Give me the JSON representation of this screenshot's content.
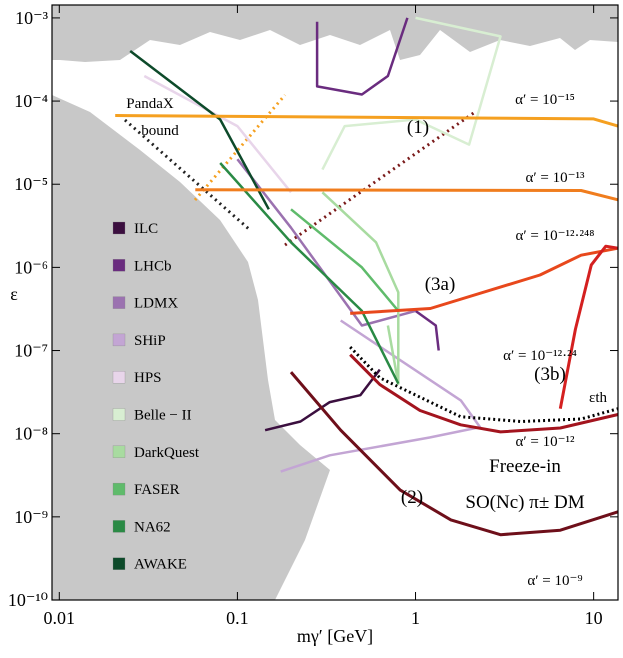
{
  "chart_data": {
    "type": "line",
    "xlabel": "mγ′ [GeV]",
    "ylabel": "ε",
    "log_x": true,
    "log_y": true,
    "xlim": [
      0.0091,
      13.7
    ],
    "ylim": [
      1e-10,
      0.00143
    ],
    "xticks": [
      0.01,
      0.1,
      1,
      10
    ],
    "yticks": [
      {
        "value": 0.001,
        "label": "10⁻³"
      },
      {
        "value": 0.0001,
        "label": "10⁻⁴"
      },
      {
        "value": 1e-05,
        "label": "10⁻⁵"
      },
      {
        "value": 1e-06,
        "label": "10⁻⁶"
      },
      {
        "value": 1e-07,
        "label": "10⁻⁷"
      },
      {
        "value": 1e-08,
        "label": "10⁻⁸"
      },
      {
        "value": 1e-09,
        "label": "10⁻⁹"
      },
      {
        "value": 1e-10,
        "label": "10⁻¹⁰"
      }
    ],
    "legend": "left",
    "series": [
      {
        "name": "ILC",
        "color": "#3b0f3f",
        "x": [
          0.143,
          0.226,
          0.33,
          0.49,
          0.63
        ],
        "values": [
          1.1e-08,
          1.4e-08,
          2.4e-08,
          2.9e-08,
          5.9e-08
        ]
      },
      {
        "name": "LHCb",
        "color": "#6a2c7f",
        "x": [
          0.28,
          0.28,
          0.5,
          0.7,
          0.9,
          null,
          1.0,
          1.3,
          1.35
        ],
        "values": [
          0.0009,
          0.00015,
          0.00012,
          0.0002,
          0.001,
          null,
          3e-07,
          2e-07,
          1e-07
        ]
      },
      {
        "name": "LDMX",
        "color": "#9b72b0",
        "x": [
          0.1,
          0.2,
          0.5,
          1
        ],
        "values": [
          2e-05,
          3e-06,
          2e-07,
          3e-07
        ]
      },
      {
        "name": "SHiP",
        "color": "#c3a5d4",
        "x": [
          0.38,
          1.8,
          2.3,
          1.2,
          0.33,
          0.175
        ],
        "values": [
          2.3e-07,
          2.5e-08,
          1.2e-08,
          9e-09,
          5.5e-09,
          3.5e-09
        ]
      },
      {
        "name": "HPS",
        "color": "#e8d5ea",
        "x": [
          0.03,
          0.1,
          0.2
        ],
        "values": [
          0.0002,
          5e-05,
          8e-06
        ]
      },
      {
        "name": "Belle − II",
        "color": "#d8eed2",
        "x": [
          0.3,
          0.4,
          1,
          2,
          3,
          1
        ],
        "values": [
          1.5e-05,
          5e-05,
          6e-05,
          3e-05,
          0.0006,
          0.001
        ]
      },
      {
        "name": "DarkQuest",
        "color": "#a8dba0",
        "x": [
          0.3,
          0.6,
          0.8,
          0.8,
          0.7
        ],
        "values": [
          8e-06,
          2e-06,
          5e-07,
          4e-08,
          2e-07
        ]
      },
      {
        "name": "FASER",
        "color": "#5fbb6b",
        "x": [
          0.2,
          0.5,
          0.8
        ],
        "values": [
          5e-06,
          1e-06,
          3e-07
        ]
      },
      {
        "name": "NA62",
        "color": "#2a8a45",
        "x": [
          0.08,
          0.2,
          0.5,
          0.8
        ],
        "values": [
          1.8e-05,
          2e-06,
          3e-07,
          4e-08
        ]
      },
      {
        "name": "AWAKE",
        "color": "#0d4a2a",
        "x": [
          0.025,
          0.08,
          0.15
        ],
        "values": [
          0.0004,
          6e-05,
          5e-06
        ]
      }
    ],
    "curves": [
      {
        "label": "α′ = 10⁻¹⁵",
        "color": "#f5a020",
        "x": [
          0.0206,
          10,
          13.7
        ],
        "values": [
          6.7e-05,
          6.1e-05,
          5e-05
        ]
      },
      {
        "label": "α′ = 10⁻¹³",
        "color": "#f07d1e",
        "x": [
          0.058,
          8.5,
          13.7
        ],
        "values": [
          8.6e-06,
          8.4e-06,
          6.5e-06
        ]
      },
      {
        "label": "α′ = 10⁻¹²·²⁴⁸",
        "color": "#e8481c",
        "x": [
          0.43,
          1.21,
          5.0,
          8.5,
          13.7
        ],
        "values": [
          2.8e-07,
          3.2e-07,
          8.1e-07,
          1.4e-06,
          1.7e-06
        ]
      },
      {
        "label": "α′ = 10⁻¹²·²⁴",
        "color": "#d42020",
        "x": [
          6.5,
          7.9,
          9.7,
          11.7,
          13.7
        ],
        "values": [
          2e-08,
          1.8e-07,
          1.07e-06,
          1.8e-06,
          1.7e-06
        ]
      },
      {
        "label": "α′ = 10⁻¹²",
        "color": "#a3141e",
        "x": [
          0.43,
          0.63,
          1.06,
          1.79,
          3.0,
          6.5,
          13.7
        ],
        "values": [
          8.9e-08,
          3.9e-08,
          1.9e-08,
          1.28e-08,
          1.05e-08,
          1.17e-08,
          1.7e-08
        ]
      },
      {
        "label": "α′ = 10⁻⁹",
        "color": "#6e0f1a",
        "x": [
          0.2,
          0.38,
          0.82,
          1.58,
          3.0,
          6.5,
          13.7
        ],
        "values": [
          5.5e-08,
          1.1e-08,
          2.1e-09,
          9.2e-10,
          6.1e-10,
          6.9e-10,
          1.15e-09
        ]
      },
      {
        "label": "εth",
        "color": "#000000",
        "dash": true,
        "x": [
          0.43,
          0.63,
          1.79,
          3.9,
          8.5,
          13.7
        ],
        "values": [
          1.1e-07,
          4.7e-08,
          1.6e-08,
          1.4e-08,
          1.5e-08,
          2e-08
        ]
      }
    ],
    "annotations": [
      "(1)",
      "(2)",
      "(3a)",
      "(3b)",
      "Freeze-in",
      "SO(Nc) π± DM",
      "PandaX",
      "bound"
    ]
  }
}
